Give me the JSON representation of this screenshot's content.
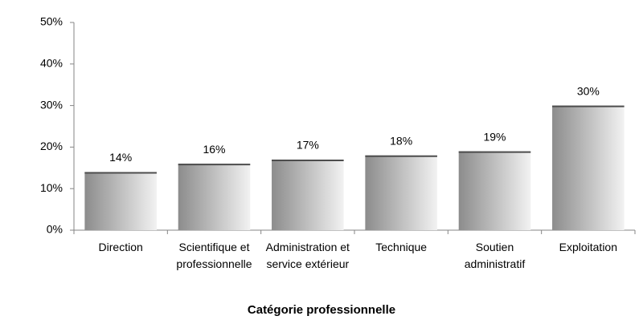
{
  "chart_data": {
    "type": "bar",
    "x_label": "Catégorie professionnelle",
    "categories": [
      "Direction",
      "Scientifique et professionnelle",
      "Administration et service extérieur",
      "Technique",
      "Soutien administratif",
      "Exploitation"
    ],
    "values": [
      14,
      16,
      17,
      18,
      19,
      30
    ],
    "value_labels": [
      "14%",
      "16%",
      "17%",
      "18%",
      "19%",
      "30%"
    ],
    "color": "#a6a6a6",
    "ylim": [
      0,
      50
    ],
    "yticks": [
      {
        "value": 0,
        "label": "0%"
      },
      {
        "value": 10,
        "label": "10%"
      },
      {
        "value": 20,
        "label": "20%"
      },
      {
        "value": 30,
        "label": "30%"
      },
      {
        "value": 40,
        "label": "40%"
      },
      {
        "value": 50,
        "label": "50%"
      }
    ],
    "grid": false
  }
}
